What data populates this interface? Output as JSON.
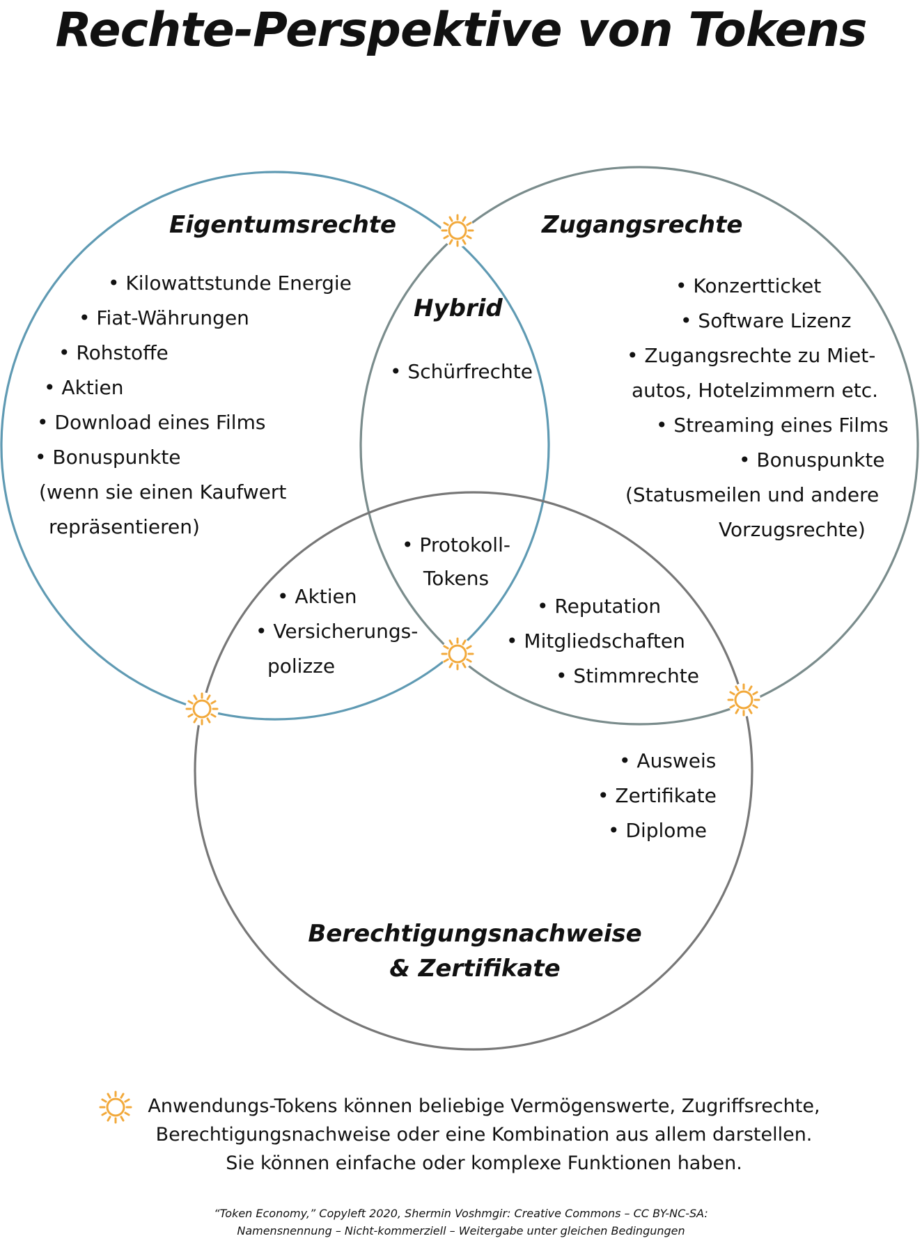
{
  "title": "Rechte-Perspektive von Tokens",
  "colors": {
    "eigentum_circle": "#5f9ab3",
    "zugang_circle": "#7a8c8c",
    "berechtigung_circle": "#777777",
    "sun_icon": "#f2a93b"
  },
  "sets": {
    "eigentum": {
      "heading": "Eigentumsrechte",
      "items": [
        "• Kilowattstunde Energie",
        "• Fiat-Währungen",
        "• Rohstoffe",
        "•  Aktien",
        "• Download eines Films",
        "• Bonuspunkte",
        "(wenn sie einen Kaufwert",
        "repräsentieren)"
      ]
    },
    "zugang": {
      "heading": "Zugangsrechte",
      "items": [
        "• Konzertticket",
        "• Software Lizenz",
        "• Zugangsrechte zu Miet-",
        "autos, Hotelzimmern etc.",
        "• Streaming eines Films",
        "• Bonuspunkte",
        "(Statusmeilen und andere",
        "Vorzugsrechte)"
      ]
    },
    "berechtigung": {
      "heading_line1": "Berechtigungsnachweise",
      "heading_line2": "& Zertifikate",
      "items": [
        "• Ausweis",
        "• Zertifikate",
        "• Diplome"
      ]
    }
  },
  "overlaps": {
    "hybrid": {
      "heading": "Hybrid",
      "items": [
        "• Schürfrechte"
      ]
    },
    "eigentum_berechtigung": {
      "items": [
        "• Aktien",
        "• Versicherungs-",
        "polizze"
      ]
    },
    "zugang_berechtigung": {
      "items": [
        "• Reputation",
        "• Mitgliedschaften",
        "• Stimmrechte"
      ]
    },
    "center": {
      "items": [
        "• Protokoll-",
        "Tokens"
      ]
    }
  },
  "legend": {
    "icon": "sun-icon",
    "lines": [
      "Anwendungs-Tokens können beliebige Vermögenswerte, Zugriffsrechte,",
      "Berechtigungsnachweise oder eine Kombination aus allem darstellen.",
      "Sie können einfache oder komplexe Funktionen haben."
    ]
  },
  "credit": {
    "line1": "“Token Economy,” Copyleft 2020, Shermin Voshmgir: Creative Commons – CC BY-NC-SA:",
    "line2": "Namensnennung – Nicht-kommerziell – Weitergabe unter gleichen Bedingungen"
  }
}
